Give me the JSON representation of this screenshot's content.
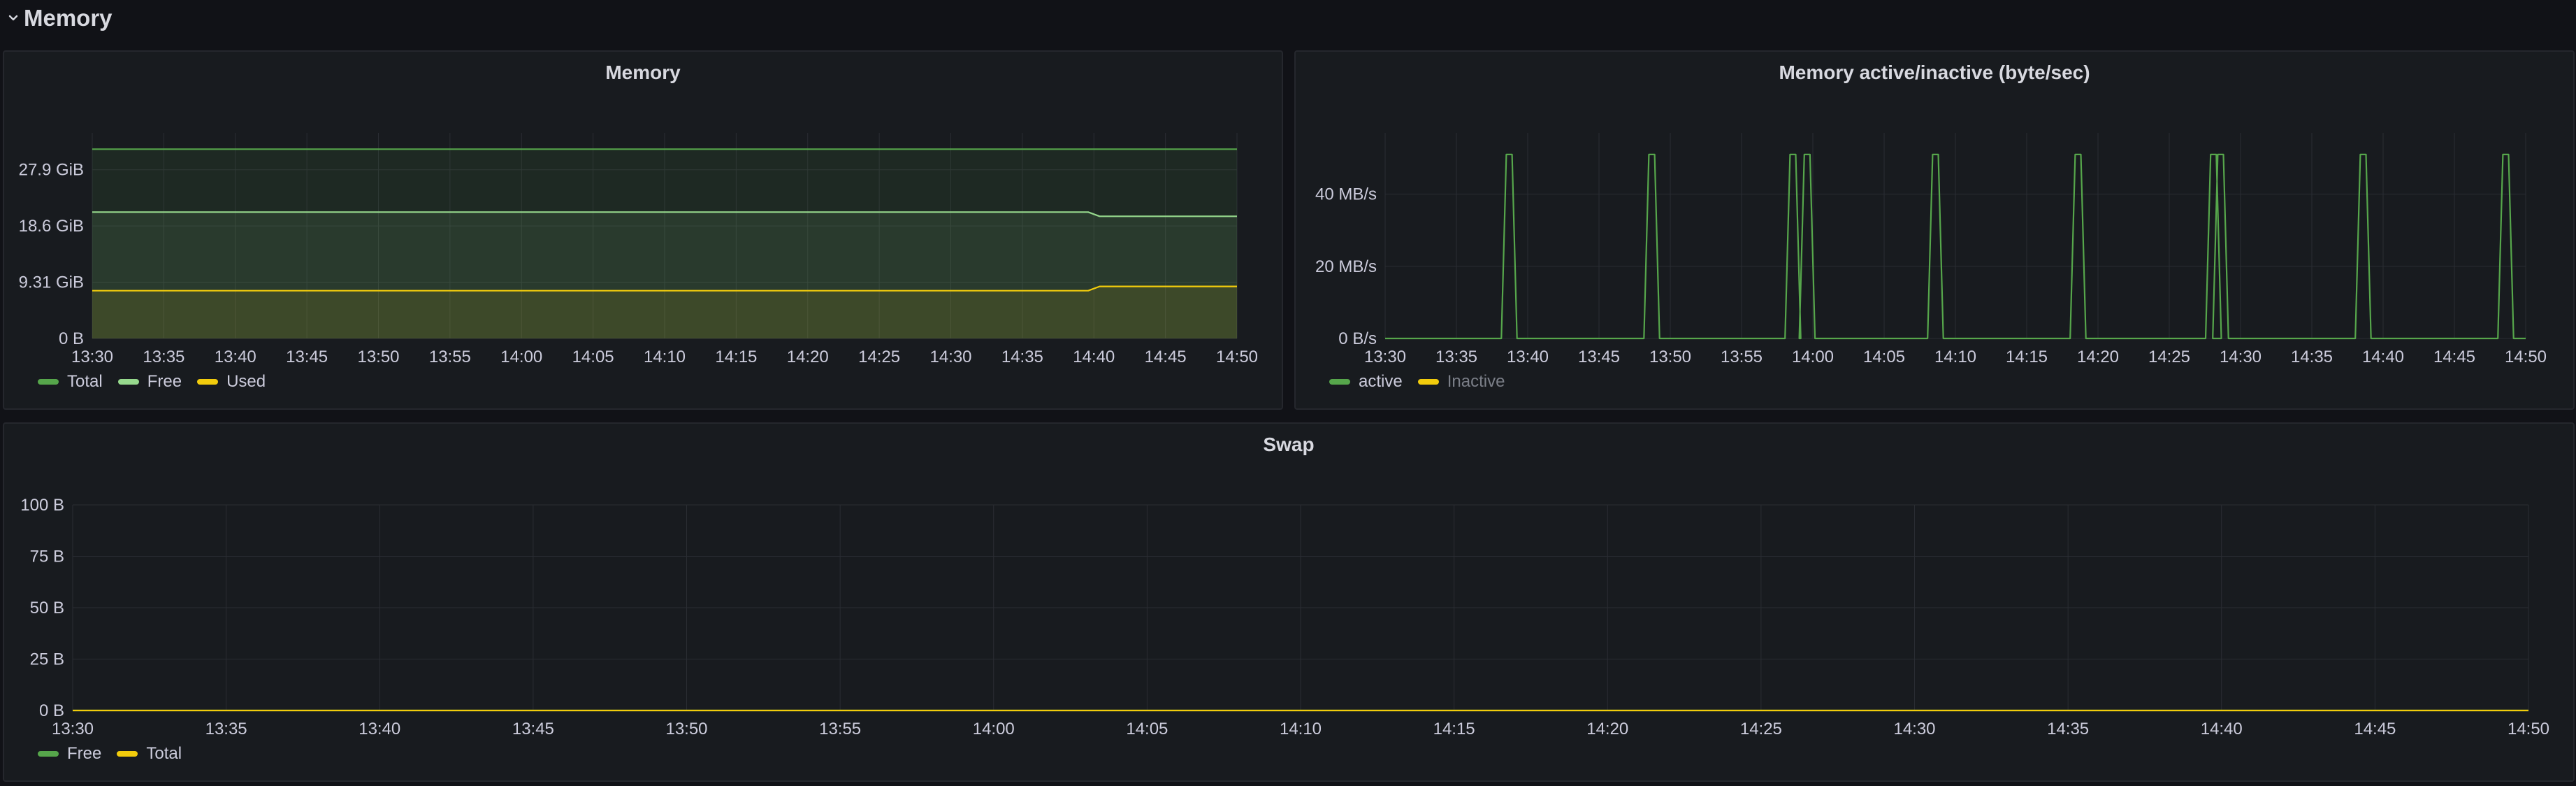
{
  "row": {
    "title": "Memory",
    "chevron_icon": "chevron-down-icon"
  },
  "colors": {
    "green": "#56a64b",
    "light_green": "#96d98d",
    "yellow": "#f2cc0c",
    "grid": "#2a2d33",
    "panel_bg": "#181b1f"
  },
  "panels": {
    "memory": {
      "title": "Memory",
      "legend": [
        {
          "label": "Total",
          "color": "#56a64b"
        },
        {
          "label": "Free",
          "color": "#96d98d"
        },
        {
          "label": "Used",
          "color": "#f2cc0c"
        }
      ]
    },
    "active": {
      "title": "Memory active/inactive (byte/sec)",
      "legend": [
        {
          "label": "active",
          "color": "#56a64b",
          "hidden": false
        },
        {
          "label": "Inactive",
          "color": "#f2cc0c",
          "hidden": true
        }
      ]
    },
    "swap": {
      "title": "Swap",
      "legend": [
        {
          "label": "Free",
          "color": "#56a64b"
        },
        {
          "label": "Total",
          "color": "#f2cc0c"
        }
      ]
    }
  },
  "chart_data": [
    {
      "type": "area",
      "title": "Memory",
      "x_ticks": [
        "13:30",
        "13:35",
        "13:40",
        "13:45",
        "13:50",
        "13:55",
        "14:00",
        "14:05",
        "14:10",
        "14:15",
        "14:20",
        "14:25",
        "14:30",
        "14:35",
        "14:40",
        "14:45",
        "14:50"
      ],
      "xlim_minutes": [
        0,
        80
      ],
      "y_ticks": [
        "0 B",
        "9.31 GiB",
        "18.6 GiB",
        "27.9 GiB"
      ],
      "y_tick_values": [
        0,
        9.31,
        18.6,
        27.9
      ],
      "ylim": [
        0,
        34
      ],
      "y_unit": "GiB",
      "series": [
        {
          "name": "Total",
          "color": "#56a64b",
          "points": [
            [
              0,
              31.3
            ],
            [
              80,
              31.3
            ]
          ]
        },
        {
          "name": "Free",
          "color": "#96d98d",
          "points": [
            [
              0,
              20.9
            ],
            [
              69.6,
              20.9
            ],
            [
              70.4,
              20.2
            ],
            [
              80,
              20.2
            ]
          ]
        },
        {
          "name": "Used",
          "color": "#f2cc0c",
          "points": [
            [
              0,
              7.9
            ],
            [
              69.6,
              7.9
            ],
            [
              70.4,
              8.6
            ],
            [
              80,
              8.6
            ]
          ]
        }
      ],
      "legend_position": "bottom-left"
    },
    {
      "type": "line",
      "title": "Memory active/inactive (byte/sec)",
      "x_ticks": [
        "13:30",
        "13:35",
        "13:40",
        "13:45",
        "13:50",
        "13:55",
        "14:00",
        "14:05",
        "14:10",
        "14:15",
        "14:20",
        "14:25",
        "14:30",
        "14:35",
        "14:40",
        "14:45",
        "14:50"
      ],
      "xlim_minutes": [
        0,
        80
      ],
      "y_ticks": [
        "0 B/s",
        "20 MB/s",
        "40 MB/s"
      ],
      "y_tick_values": [
        0,
        20,
        40
      ],
      "ylim": [
        0,
        57
      ],
      "y_unit": "MB/s",
      "series": [
        {
          "name": "active",
          "color": "#56a64b",
          "spike_peak": 51,
          "spike_centers_minutes": [
            8.7,
            18.7,
            28.6,
            29.6,
            38.6,
            48.6,
            58.1,
            58.6,
            68.6,
            78.6
          ]
        },
        {
          "name": "Inactive",
          "color": "#f2cc0c",
          "hidden": true,
          "values": []
        }
      ],
      "legend_position": "bottom-left"
    },
    {
      "type": "line",
      "title": "Swap",
      "x_ticks": [
        "13:30",
        "13:35",
        "13:40",
        "13:45",
        "13:50",
        "13:55",
        "14:00",
        "14:05",
        "14:10",
        "14:15",
        "14:20",
        "14:25",
        "14:30",
        "14:35",
        "14:40",
        "14:45",
        "14:50"
      ],
      "xlim_minutes": [
        0,
        80
      ],
      "y_ticks": [
        "0 B",
        "25 B",
        "50 B",
        "75 B",
        "100 B"
      ],
      "y_tick_values": [
        0,
        25,
        50,
        75,
        100
      ],
      "ylim": [
        0,
        100
      ],
      "y_unit": "B",
      "series": [
        {
          "name": "Free",
          "color": "#56a64b",
          "points": [
            [
              0,
              0
            ],
            [
              80,
              0
            ]
          ]
        },
        {
          "name": "Total",
          "color": "#f2cc0c",
          "points": [
            [
              0,
              0
            ],
            [
              80,
              0
            ]
          ]
        }
      ],
      "legend_position": "bottom-left"
    }
  ]
}
